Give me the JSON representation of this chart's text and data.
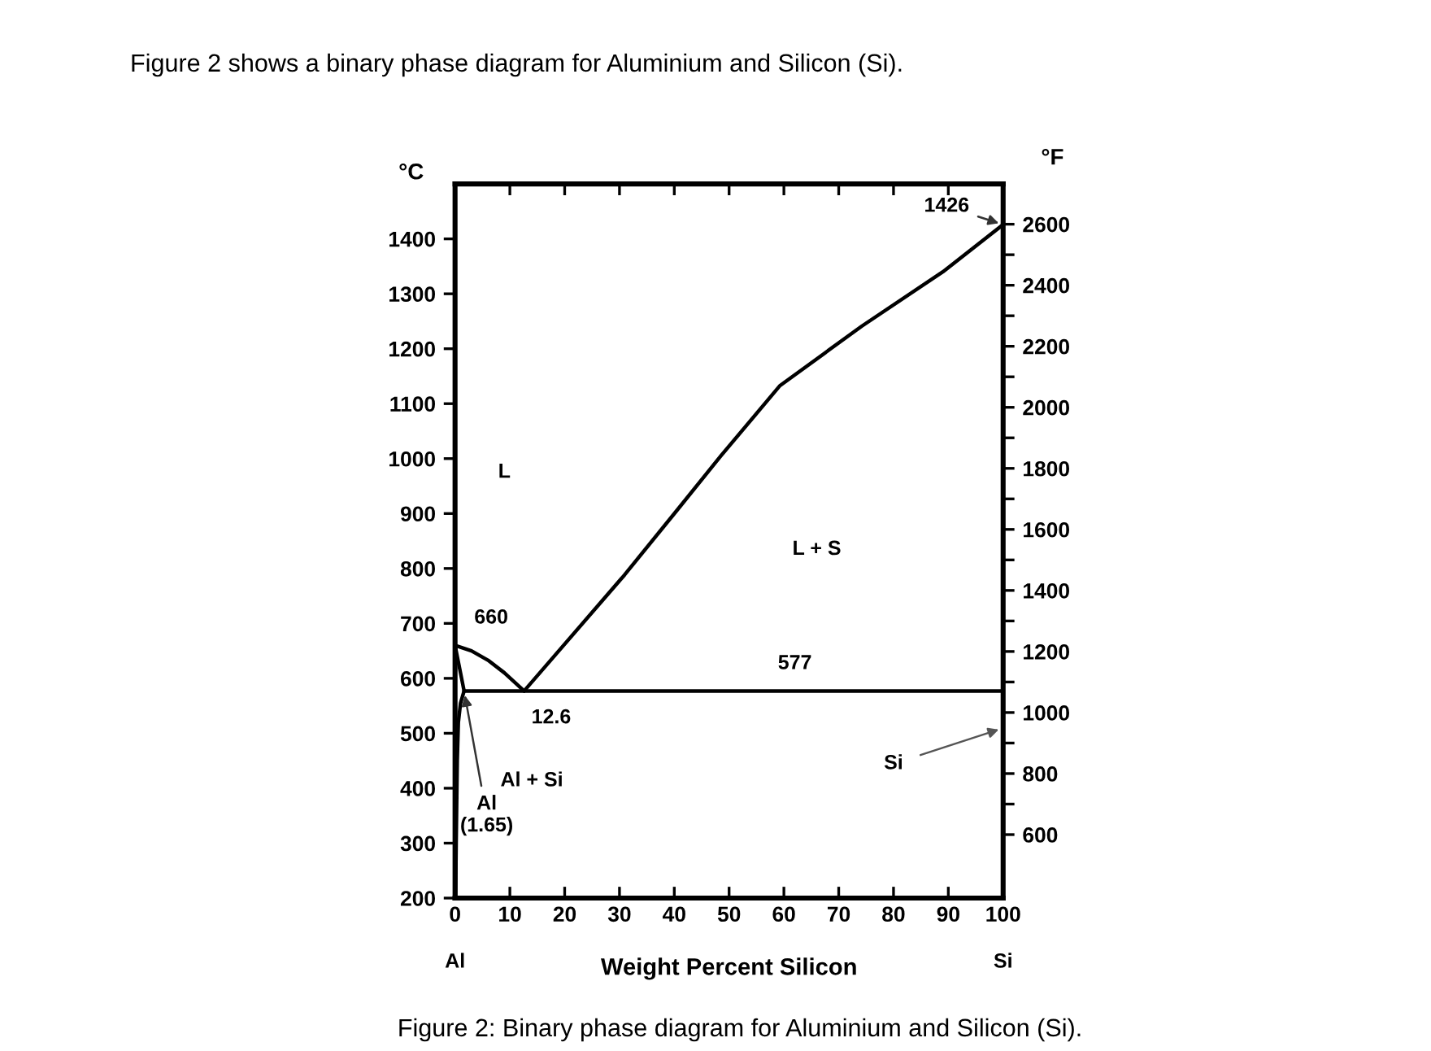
{
  "chart_data": {
    "type": "line",
    "title": "Figure 2 shows a binary phase diagram for Aluminium and Silicon (Si).",
    "xlabel": "Weight Percent Silicon",
    "ylabel": "°C",
    "y2label": "°F",
    "xlim": [
      0,
      100
    ],
    "xticks": [
      0,
      10,
      20,
      30,
      40,
      50,
      60,
      70,
      80,
      90,
      100
    ],
    "ylim": [
      200,
      1500
    ],
    "yticks": [
      200,
      300,
      400,
      500,
      600,
      700,
      800,
      900,
      1000,
      1100,
      1200,
      1300,
      1400
    ],
    "y2lim": [
      392,
      2732
    ],
    "y2ticks": [
      600,
      {
        "value": 700,
        "label": null
      },
      800,
      {
        "value": 900,
        "label": null
      },
      1000,
      {
        "value": 1100,
        "label": null
      },
      1200,
      {
        "value": 1300,
        "label": null
      },
      1400,
      {
        "value": 1500,
        "label": null
      },
      1600,
      {
        "value": 1700,
        "label": null
      },
      1800,
      {
        "value": 1900,
        "label": null
      },
      2000,
      {
        "value": 2100,
        "label": null
      },
      2200,
      {
        "value": 2300,
        "label": null
      },
      2400,
      {
        "value": 2500,
        "label": null
      },
      2600
    ],
    "grid": false,
    "legend": false,
    "marker": "none",
    "line_style": "solid",
    "series": [
      {
        "color": "#000000",
        "x": [
          0,
          3,
          6,
          9,
          12.6
        ],
        "values": [
          660,
          650,
          633,
          610,
          577
        ]
      },
      {
        "color": "#000000",
        "x": [
          12.6,
          30.9,
          40.5,
          48.5,
          59.3,
          74.2,
          89,
          100
        ],
        "values": [
          577,
          788,
          906,
          1005,
          1133,
          1241,
          1340,
          1426
        ]
      },
      {
        "color": "#000000",
        "x": [
          0,
          1.65
        ],
        "values": [
          660,
          577
        ]
      },
      {
        "color": "#000000",
        "x": [
          1.65,
          1,
          0.6,
          0.4,
          0.2,
          0.1
        ],
        "values": [
          577,
          555,
          520,
          450,
          300,
          200
        ]
      },
      {
        "color": "#000000",
        "x": [
          1.65,
          100
        ],
        "values": [
          577,
          577
        ]
      }
    ],
    "annotations": [
      {
        "text": "660",
        "x": 0,
        "y": 660
      },
      {
        "text": "577",
        "x": 62,
        "y": 577
      },
      {
        "text": "12.6",
        "x": 12.6,
        "y": 577
      },
      {
        "text": "Al\n(1.65)",
        "x": 1.65,
        "y": 577
      },
      {
        "text": "1426",
        "x": 100,
        "y": 1426
      },
      "L",
      "L + S",
      "Al + Si",
      "Si",
      "Al",
      "Si",
      "Figure 2: Binary phase diagram for Aluminium and Silicon (Si)."
    ]
  }
}
